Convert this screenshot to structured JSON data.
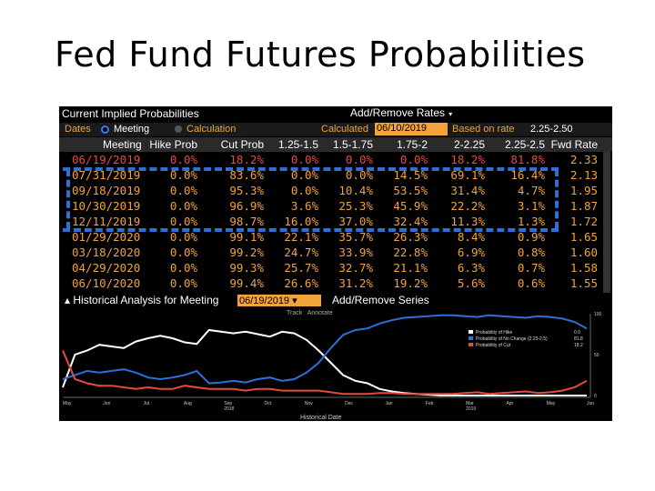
{
  "slide_title": "Fed Fund Futures Probabilities",
  "panel": {
    "title": "Current Implied Probabilities",
    "add_remove_rates": "Add/Remove Rates",
    "dates_label": "Dates",
    "meeting_label": "Meeting",
    "calculation_label": "Calculation",
    "calculated_label": "Calculated",
    "calculated_date": "06/10/2019",
    "based_on_rate_label": "Based on rate",
    "based_on_rate_value": "2.25-2.50"
  },
  "table": {
    "columns": [
      "Meeting",
      "Hike Prob",
      "Cut Prob",
      "1.25-1.5",
      "1.5-1.75",
      "1.75-2",
      "2-2.25",
      "2.25-2.5",
      "Fwd Rate"
    ],
    "rows": [
      [
        "06/19/2019",
        "0.0%",
        "18.2%",
        "0.0%",
        "0.0%",
        "0.0%",
        "18.2%",
        "81.8%",
        "2.33"
      ],
      [
        "07/31/2019",
        "0.0%",
        "83.6%",
        "0.0%",
        "0.0%",
        "14.5%",
        "69.1%",
        "16.4%",
        "2.13"
      ],
      [
        "09/18/2019",
        "0.0%",
        "95.3%",
        "0.0%",
        "10.4%",
        "53.5%",
        "31.4%",
        "4.7%",
        "1.95"
      ],
      [
        "10/30/2019",
        "0.0%",
        "96.9%",
        "3.6%",
        "25.3%",
        "45.9%",
        "22.2%",
        "3.1%",
        "1.87"
      ],
      [
        "12/11/2019",
        "0.0%",
        "98.7%",
        "16.0%",
        "37.0%",
        "32.4%",
        "11.3%",
        "1.3%",
        "1.72"
      ],
      [
        "01/29/2020",
        "0.0%",
        "99.1%",
        "22.1%",
        "35.7%",
        "26.3%",
        "8.4%",
        "0.9%",
        "1.65"
      ],
      [
        "03/18/2020",
        "0.0%",
        "99.2%",
        "24.7%",
        "33.9%",
        "22.8%",
        "6.9%",
        "0.8%",
        "1.60"
      ],
      [
        "04/29/2020",
        "0.0%",
        "99.3%",
        "25.7%",
        "32.7%",
        "21.1%",
        "6.3%",
        "0.7%",
        "1.58"
      ],
      [
        "06/10/2020",
        "0.0%",
        "99.4%",
        "26.6%",
        "31.2%",
        "19.2%",
        "5.6%",
        "0.6%",
        "1.55"
      ]
    ]
  },
  "historical": {
    "title": "Historical Analysis for Meeting",
    "meeting_date": "06/19/2019",
    "add_remove_series": "Add/Remove Series",
    "track_label": "Track",
    "annotate_label": "Annotate"
  },
  "colors": {
    "orange": "#f2a33a",
    "red": "#e84a3c",
    "blue": "#2f6fd6",
    "white": "#ffffff"
  },
  "chart_data": {
    "type": "line",
    "title": "",
    "xlabel": "Historical Date",
    "ylabel": "",
    "x_ticks": [
      "May",
      "Jun",
      "Jul",
      "Aug",
      "Sep 2018",
      "Oct",
      "Nov",
      "Dec",
      "Jan",
      "Feb",
      "Mar 2019",
      "Apr",
      "May",
      "Jun"
    ],
    "y_ticks": [
      "100",
      "50",
      "0"
    ],
    "ylim": [
      0,
      100
    ],
    "legend_position": "right",
    "series": [
      {
        "name": "Probability of Hike",
        "color": "#ffffff",
        "last_value": "0.0",
        "values": [
          10,
          50,
          55,
          62,
          60,
          58,
          66,
          70,
          73,
          70,
          65,
          63,
          80,
          78,
          76,
          78,
          75,
          72,
          78,
          76,
          68,
          55,
          40,
          25,
          18,
          15,
          8,
          5,
          3,
          2,
          1,
          0,
          0,
          0,
          0,
          0,
          0,
          0,
          0,
          0,
          0,
          0,
          0,
          0
        ]
      },
      {
        "name": "Probability of No Change (2.25-2.5)",
        "color": "#2f6fd6",
        "last_value": "81.8",
        "values": [
          20,
          25,
          30,
          28,
          30,
          32,
          28,
          22,
          20,
          22,
          25,
          30,
          15,
          16,
          18,
          16,
          20,
          22,
          18,
          20,
          28,
          40,
          58,
          74,
          80,
          82,
          88,
          92,
          95,
          96,
          97,
          98,
          98,
          97,
          96,
          98,
          97,
          96,
          95,
          97,
          96,
          94,
          90,
          82
        ]
      },
      {
        "name": "Probability of Cut",
        "color": "#e84a3c",
        "last_value": "18.2",
        "values": [
          55,
          20,
          15,
          12,
          12,
          10,
          8,
          10,
          8,
          8,
          12,
          10,
          8,
          8,
          8,
          6,
          8,
          8,
          6,
          6,
          6,
          6,
          4,
          2,
          2,
          2,
          3,
          3,
          2,
          2,
          2,
          2,
          2,
          3,
          4,
          2,
          3,
          4,
          5,
          3,
          4,
          6,
          10,
          18
        ]
      }
    ]
  }
}
